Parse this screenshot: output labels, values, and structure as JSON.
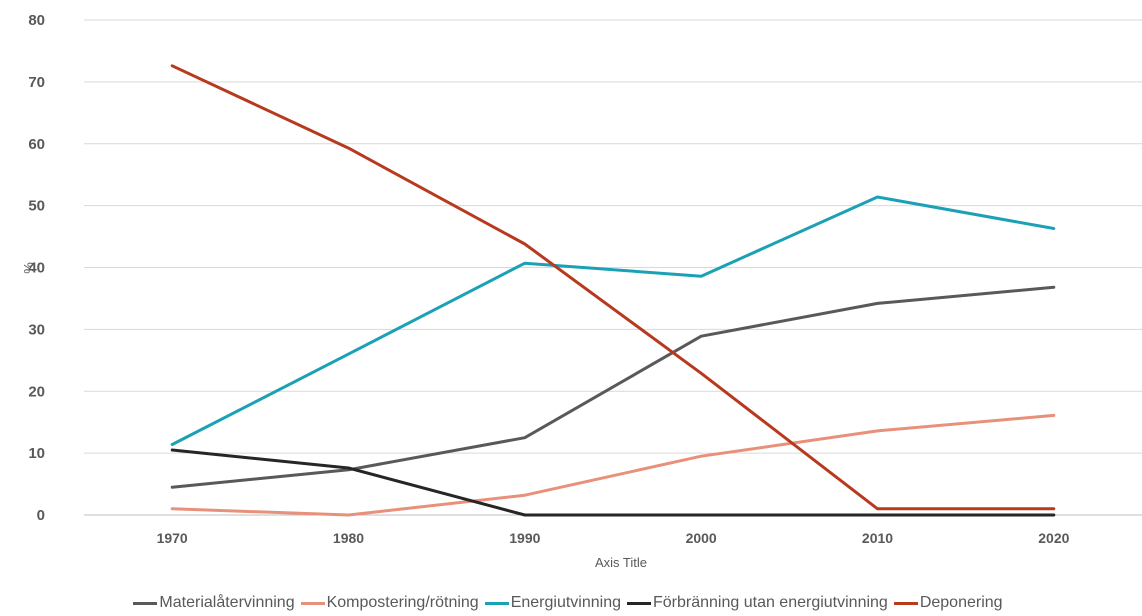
{
  "chart_data": {
    "type": "line",
    "title": "",
    "xlabel": "Axis Title",
    "ylabel": "%",
    "categories": [
      "1970",
      "1980",
      "1990",
      "2000",
      "2010",
      "2020"
    ],
    "ylim": [
      0,
      80
    ],
    "yticks": [
      "0",
      "10",
      "20",
      "30",
      "40",
      "50",
      "60",
      "70",
      "80"
    ],
    "grid": true,
    "legend_position": "bottom",
    "series": [
      {
        "name": "Materialåtervinning",
        "color": "#595959",
        "values": [
          4.5,
          7.3,
          12.5,
          28.9,
          34.2,
          36.8
        ]
      },
      {
        "name": "Kompostering/rötning",
        "color": "#E8907A",
        "values": [
          1.0,
          0.0,
          3.2,
          9.5,
          13.6,
          16.1
        ]
      },
      {
        "name": "Energiutvinning",
        "color": "#1BA1B5",
        "values": [
          11.4,
          26.0,
          40.7,
          38.6,
          51.4,
          46.3
        ]
      },
      {
        "name": "Förbränning utan energiutvinning",
        "color": "#262626",
        "values": [
          10.5,
          7.6,
          0.0,
          0.0,
          0.0,
          0.0
        ]
      },
      {
        "name": "Deponering",
        "color": "#B83A1E",
        "values": [
          72.6,
          59.3,
          43.8,
          22.9,
          1.0,
          1.0
        ]
      }
    ]
  }
}
